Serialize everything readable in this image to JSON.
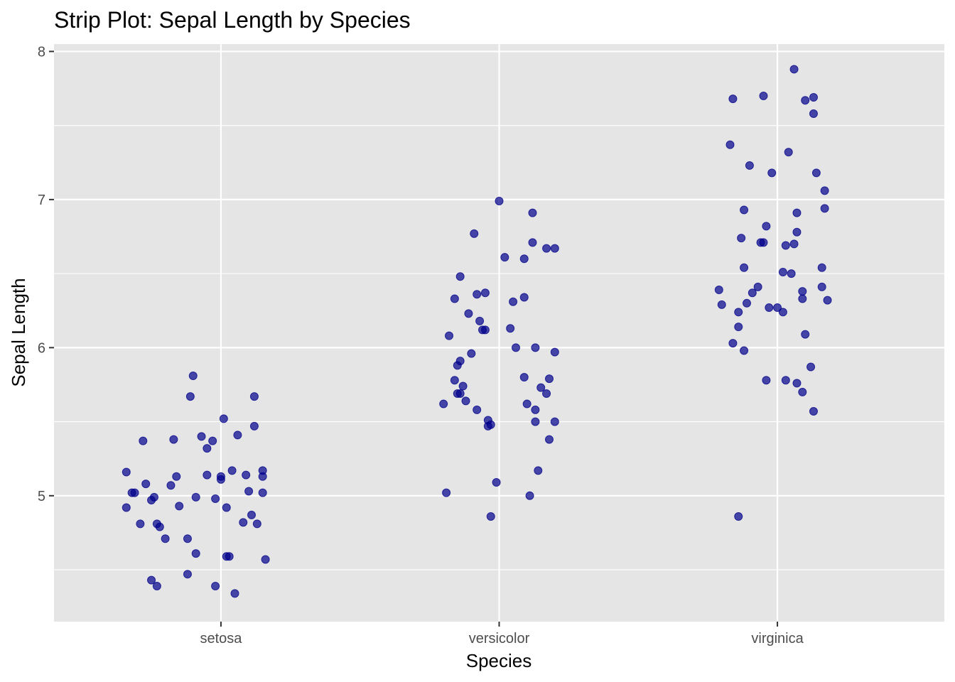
{
  "chart_data": {
    "type": "scatter",
    "title": "Strip Plot: Sepal Length by Species",
    "xlabel": "Species",
    "ylabel": "Sepal Length",
    "categories": [
      "setosa",
      "versicolor",
      "virginica"
    ],
    "ylim": [
      4.15,
      8.05
    ],
    "yticks": [
      "5",
      "6",
      "7",
      "8"
    ],
    "grid": true,
    "point_color": "#00008B",
    "panel_background": "#E5E5E5",
    "series": [
      {
        "category": "setosa",
        "points": [
          {
            "x": 0.66,
            "y": 5.16
          },
          {
            "x": 0.68,
            "y": 5.02
          },
          {
            "x": 0.69,
            "y": 5.02
          },
          {
            "x": 0.66,
            "y": 4.92
          },
          {
            "x": 0.71,
            "y": 4.81
          },
          {
            "x": 0.72,
            "y": 5.37
          },
          {
            "x": 0.73,
            "y": 5.08
          },
          {
            "x": 0.75,
            "y": 4.97
          },
          {
            "x": 0.76,
            "y": 4.99
          },
          {
            "x": 0.75,
            "y": 4.43
          },
          {
            "x": 0.77,
            "y": 4.39
          },
          {
            "x": 0.77,
            "y": 4.81
          },
          {
            "x": 0.78,
            "y": 4.79
          },
          {
            "x": 0.8,
            "y": 4.71
          },
          {
            "x": 0.82,
            "y": 5.07
          },
          {
            "x": 0.83,
            "y": 5.38
          },
          {
            "x": 0.84,
            "y": 5.13
          },
          {
            "x": 0.85,
            "y": 4.93
          },
          {
            "x": 0.88,
            "y": 4.71
          },
          {
            "x": 0.88,
            "y": 4.47
          },
          {
            "x": 0.89,
            "y": 5.67
          },
          {
            "x": 0.9,
            "y": 5.81
          },
          {
            "x": 0.91,
            "y": 4.99
          },
          {
            "x": 0.91,
            "y": 4.61
          },
          {
            "x": 0.93,
            "y": 5.4
          },
          {
            "x": 0.95,
            "y": 5.32
          },
          {
            "x": 0.95,
            "y": 5.14
          },
          {
            "x": 0.97,
            "y": 5.37
          },
          {
            "x": 0.98,
            "y": 4.98
          },
          {
            "x": 0.98,
            "y": 4.39
          },
          {
            "x": 1.0,
            "y": 5.11
          },
          {
            "x": 1.0,
            "y": 5.13
          },
          {
            "x": 1.01,
            "y": 5.52
          },
          {
            "x": 1.02,
            "y": 4.92
          },
          {
            "x": 1.02,
            "y": 4.59
          },
          {
            "x": 1.03,
            "y": 4.59
          },
          {
            "x": 1.04,
            "y": 5.17
          },
          {
            "x": 1.05,
            "y": 4.34
          },
          {
            "x": 1.06,
            "y": 5.41
          },
          {
            "x": 1.08,
            "y": 4.82
          },
          {
            "x": 1.09,
            "y": 5.14
          },
          {
            "x": 1.1,
            "y": 5.03
          },
          {
            "x": 1.11,
            "y": 4.87
          },
          {
            "x": 1.12,
            "y": 5.47
          },
          {
            "x": 1.12,
            "y": 5.67
          },
          {
            "x": 1.13,
            "y": 4.81
          },
          {
            "x": 1.15,
            "y": 5.17
          },
          {
            "x": 1.15,
            "y": 5.02
          },
          {
            "x": 1.15,
            "y": 5.13
          },
          {
            "x": 1.16,
            "y": 4.57
          }
        ]
      },
      {
        "category": "versicolor",
        "points": [
          {
            "x": 1.8,
            "y": 5.62
          },
          {
            "x": 1.81,
            "y": 5.02
          },
          {
            "x": 1.82,
            "y": 6.08
          },
          {
            "x": 1.84,
            "y": 6.33
          },
          {
            "x": 1.84,
            "y": 5.78
          },
          {
            "x": 1.85,
            "y": 5.88
          },
          {
            "x": 1.85,
            "y": 5.69
          },
          {
            "x": 1.86,
            "y": 6.48
          },
          {
            "x": 1.86,
            "y": 5.69
          },
          {
            "x": 1.86,
            "y": 5.91
          },
          {
            "x": 1.87,
            "y": 5.74
          },
          {
            "x": 1.88,
            "y": 5.64
          },
          {
            "x": 1.89,
            "y": 6.23
          },
          {
            "x": 1.9,
            "y": 5.96
          },
          {
            "x": 1.91,
            "y": 6.77
          },
          {
            "x": 1.92,
            "y": 6.36
          },
          {
            "x": 1.92,
            "y": 5.58
          },
          {
            "x": 1.93,
            "y": 6.18
          },
          {
            "x": 1.94,
            "y": 6.12
          },
          {
            "x": 1.95,
            "y": 6.37
          },
          {
            "x": 1.95,
            "y": 6.12
          },
          {
            "x": 1.96,
            "y": 5.51
          },
          {
            "x": 1.96,
            "y": 5.47
          },
          {
            "x": 1.97,
            "y": 5.48
          },
          {
            "x": 1.97,
            "y": 4.86
          },
          {
            "x": 1.99,
            "y": 5.09
          },
          {
            "x": 2.0,
            "y": 6.99
          },
          {
            "x": 2.02,
            "y": 6.61
          },
          {
            "x": 2.04,
            "y": 6.13
          },
          {
            "x": 2.05,
            "y": 6.31
          },
          {
            "x": 2.06,
            "y": 6.0
          },
          {
            "x": 2.09,
            "y": 6.34
          },
          {
            "x": 2.09,
            "y": 6.6
          },
          {
            "x": 2.09,
            "y": 5.8
          },
          {
            "x": 2.1,
            "y": 5.62
          },
          {
            "x": 2.11,
            "y": 5.0
          },
          {
            "x": 2.12,
            "y": 6.91
          },
          {
            "x": 2.12,
            "y": 6.71
          },
          {
            "x": 2.13,
            "y": 6.0
          },
          {
            "x": 2.13,
            "y": 5.58
          },
          {
            "x": 2.13,
            "y": 5.5
          },
          {
            "x": 2.14,
            "y": 5.17
          },
          {
            "x": 2.15,
            "y": 5.73
          },
          {
            "x": 2.17,
            "y": 5.69
          },
          {
            "x": 2.18,
            "y": 5.79
          },
          {
            "x": 2.18,
            "y": 5.38
          },
          {
            "x": 2.17,
            "y": 6.67
          },
          {
            "x": 2.2,
            "y": 6.67
          },
          {
            "x": 2.2,
            "y": 5.97
          },
          {
            "x": 2.2,
            "y": 5.5
          }
        ]
      },
      {
        "category": "virginica",
        "points": [
          {
            "x": 2.79,
            "y": 6.39
          },
          {
            "x": 2.8,
            "y": 6.29
          },
          {
            "x": 2.83,
            "y": 7.37
          },
          {
            "x": 2.84,
            "y": 6.03
          },
          {
            "x": 2.84,
            "y": 7.68
          },
          {
            "x": 2.86,
            "y": 6.24
          },
          {
            "x": 2.86,
            "y": 6.14
          },
          {
            "x": 2.86,
            "y": 4.86
          },
          {
            "x": 2.87,
            "y": 6.74
          },
          {
            "x": 2.88,
            "y": 6.93
          },
          {
            "x": 2.88,
            "y": 6.54
          },
          {
            "x": 2.88,
            "y": 5.98
          },
          {
            "x": 2.89,
            "y": 6.3
          },
          {
            "x": 2.9,
            "y": 7.23
          },
          {
            "x": 2.91,
            "y": 6.37
          },
          {
            "x": 2.93,
            "y": 6.41
          },
          {
            "x": 2.94,
            "y": 6.71
          },
          {
            "x": 2.95,
            "y": 6.71
          },
          {
            "x": 2.95,
            "y": 7.7
          },
          {
            "x": 2.96,
            "y": 6.82
          },
          {
            "x": 2.96,
            "y": 5.78
          },
          {
            "x": 2.97,
            "y": 6.27
          },
          {
            "x": 2.98,
            "y": 7.18
          },
          {
            "x": 3.0,
            "y": 6.27
          },
          {
            "x": 3.02,
            "y": 6.51
          },
          {
            "x": 3.02,
            "y": 6.24
          },
          {
            "x": 3.03,
            "y": 6.69
          },
          {
            "x": 3.03,
            "y": 5.78
          },
          {
            "x": 3.04,
            "y": 7.32
          },
          {
            "x": 3.05,
            "y": 6.5
          },
          {
            "x": 3.06,
            "y": 7.88
          },
          {
            "x": 3.06,
            "y": 6.7
          },
          {
            "x": 3.07,
            "y": 5.76
          },
          {
            "x": 3.07,
            "y": 6.91
          },
          {
            "x": 3.07,
            "y": 6.78
          },
          {
            "x": 3.09,
            "y": 6.38
          },
          {
            "x": 3.09,
            "y": 6.33
          },
          {
            "x": 3.09,
            "y": 5.7
          },
          {
            "x": 3.1,
            "y": 6.09
          },
          {
            "x": 3.1,
            "y": 7.67
          },
          {
            "x": 3.12,
            "y": 5.87
          },
          {
            "x": 3.13,
            "y": 7.69
          },
          {
            "x": 3.13,
            "y": 7.58
          },
          {
            "x": 3.13,
            "y": 5.57
          },
          {
            "x": 3.14,
            "y": 7.18
          },
          {
            "x": 3.16,
            "y": 6.41
          },
          {
            "x": 3.16,
            "y": 6.54
          },
          {
            "x": 3.17,
            "y": 7.06
          },
          {
            "x": 3.17,
            "y": 6.94
          },
          {
            "x": 3.18,
            "y": 6.32
          }
        ]
      }
    ]
  }
}
